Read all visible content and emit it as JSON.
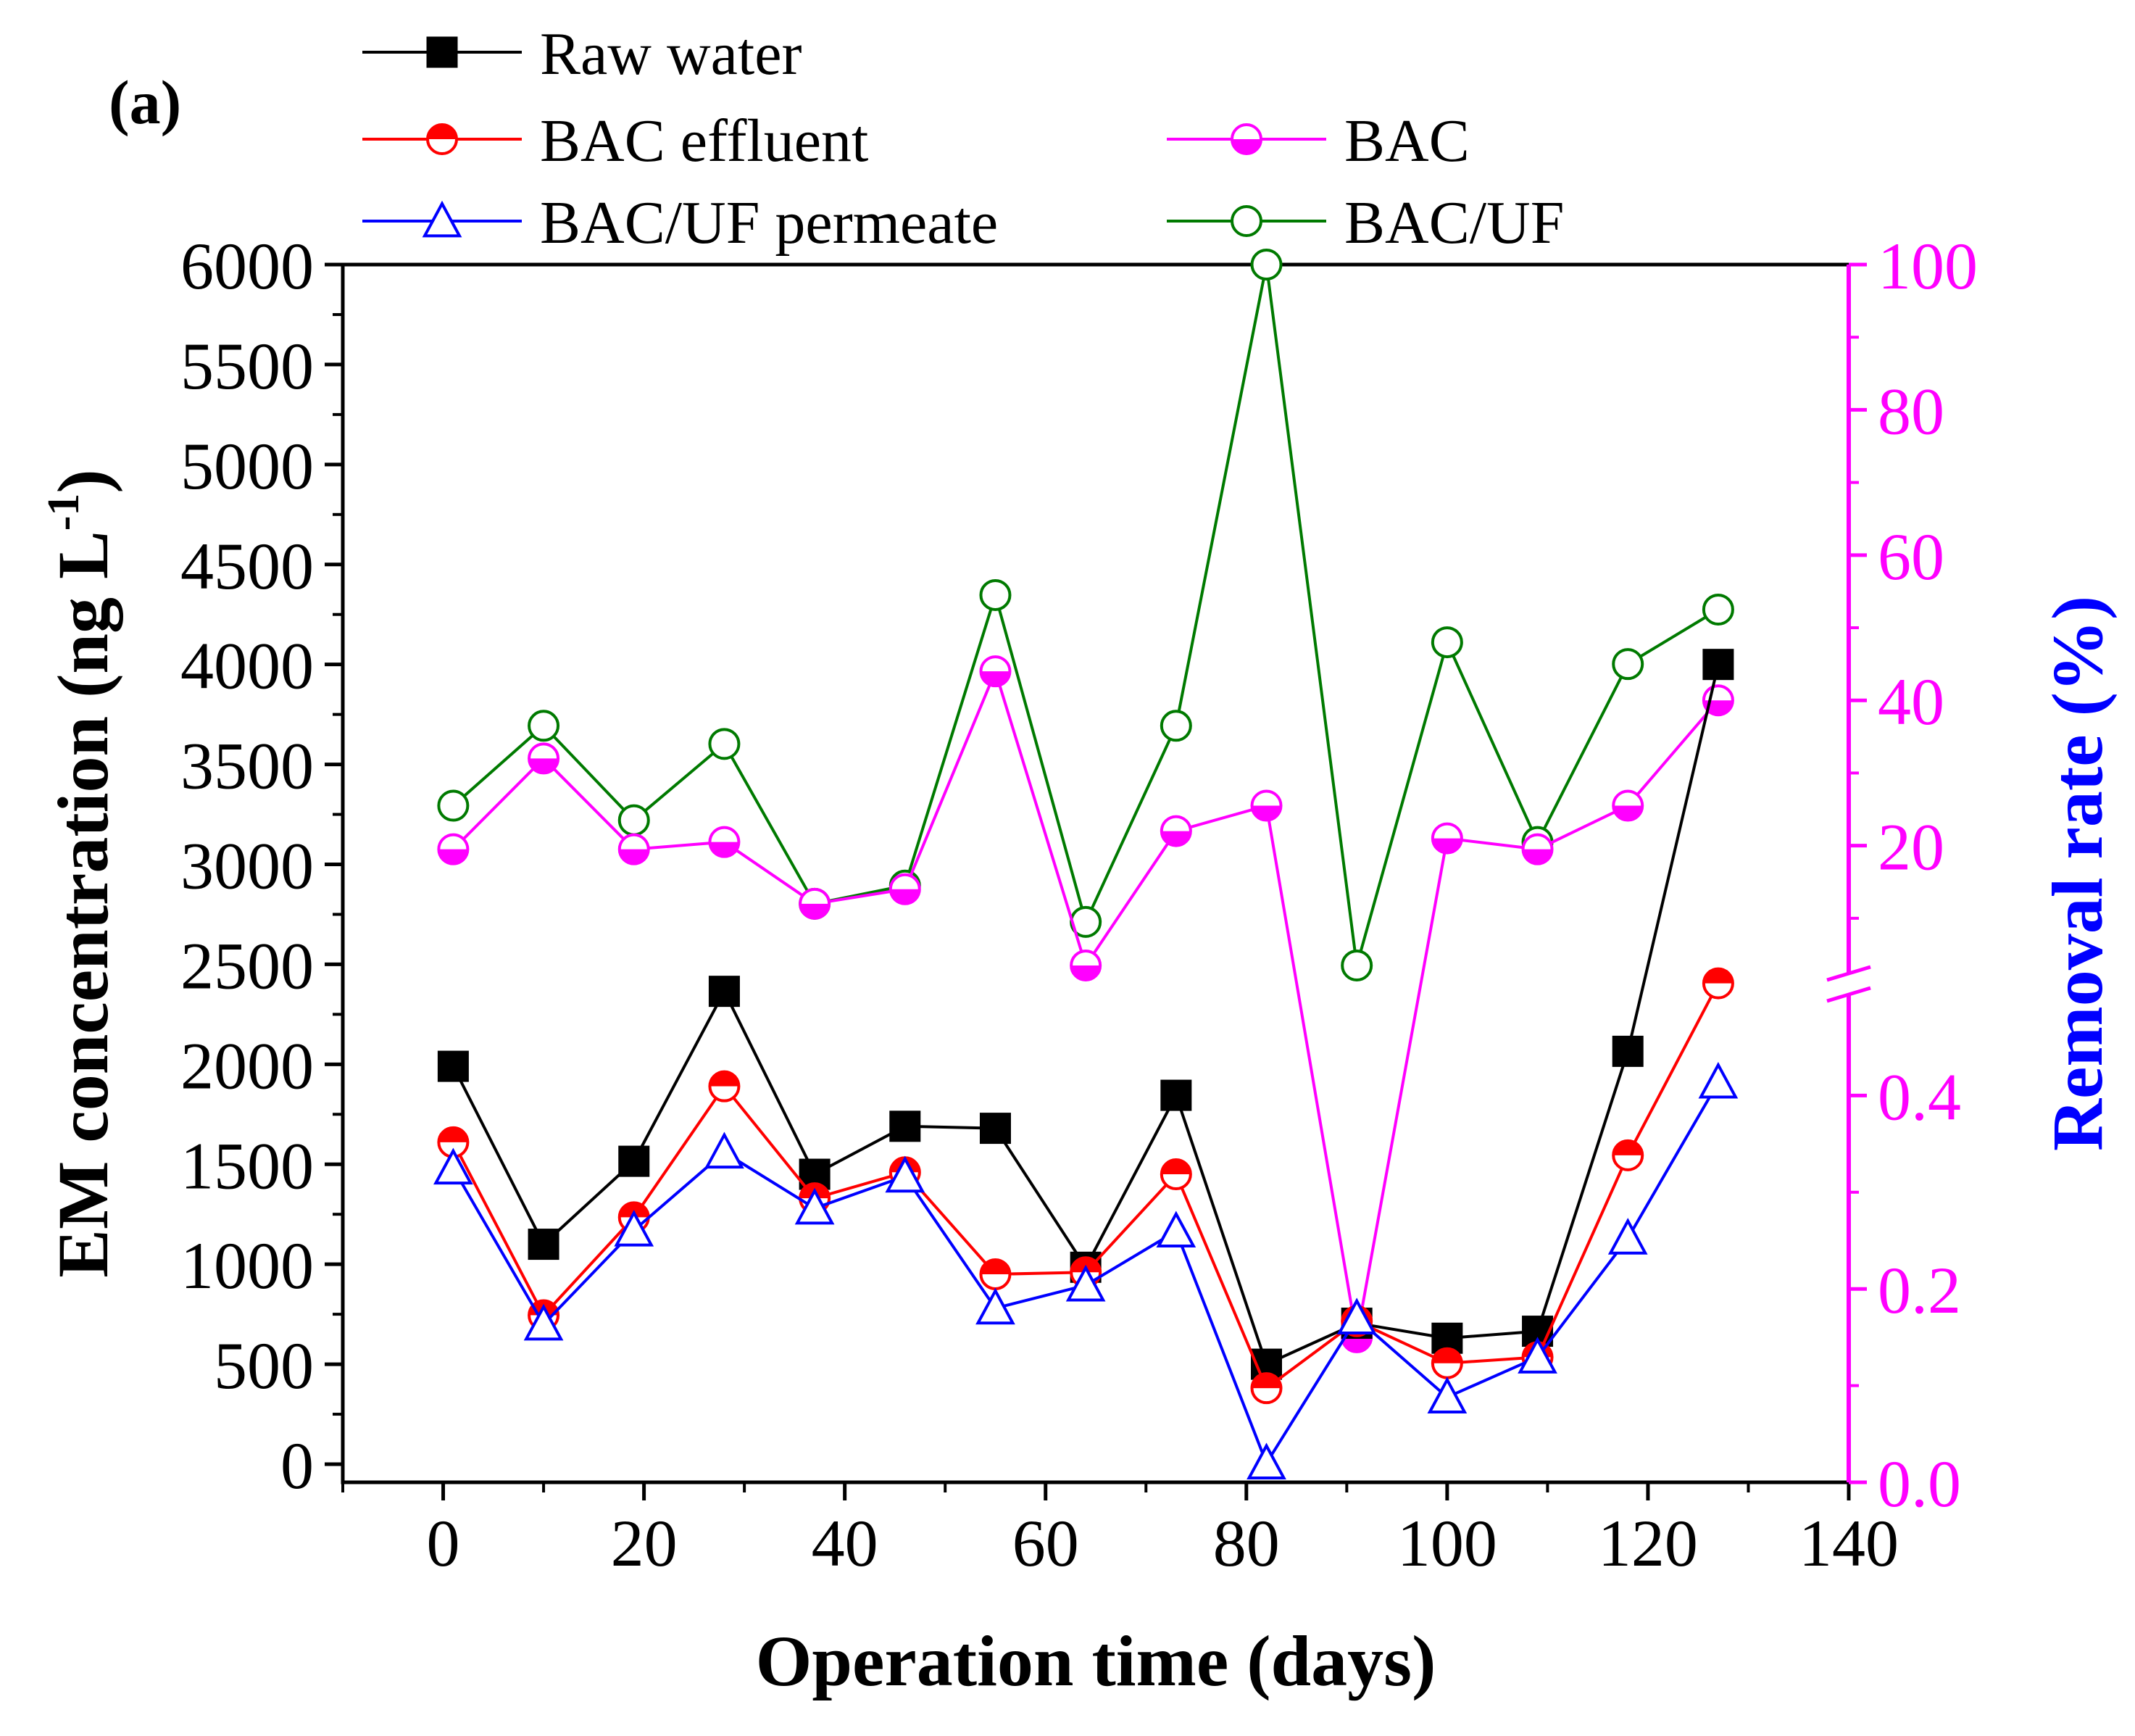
{
  "panel_label": "(a)",
  "colors": {
    "raw": "#000000",
    "bac_eff": "#ff0000",
    "bac": "#ff00ff",
    "bacuf_perm": "#0000ff",
    "bacuf": "#007a00",
    "right_axis": "#ff00ff",
    "right_label": "#0000ff"
  },
  "chart_data": {
    "type": "line",
    "xlabel": "Operation time (days)",
    "ylabel": "EM concentration (ng L",
    "ylabel_sup": "-1",
    "ylabel_close": ")",
    "y2label": "Removal rate (%)",
    "xlim": [
      -10,
      140
    ],
    "ylim": [
      0,
      6000
    ],
    "x_ticks": [
      0,
      20,
      40,
      60,
      80,
      100,
      120,
      140
    ],
    "y_ticks": [
      0,
      500,
      1000,
      1500,
      2000,
      2500,
      3000,
      3500,
      4000,
      4500,
      5000,
      5500,
      6000
    ],
    "y2_axis": {
      "lower_segment": {
        "range": [
          0.0,
          0.5
        ],
        "ticks": [
          "0.0",
          "0.2",
          "0.4"
        ]
      },
      "upper_segment": {
        "range": [
          3.0,
          100
        ],
        "ticks": [
          "20",
          "40",
          "60",
          "80",
          "100"
        ]
      },
      "break_between": true
    },
    "x": [
      1,
      10,
      19,
      28,
      37,
      46,
      55,
      64,
      73,
      82,
      91,
      100,
      109,
      118,
      127
    ],
    "series": [
      {
        "name": "Raw water",
        "axis": "left",
        "marker": "square-filled",
        "values": [
          1990,
          1100,
          1515,
          2365,
          1450,
          1690,
          1680,
          985,
          1845,
          500,
          705,
          630,
          665,
          2065,
          4000
        ]
      },
      {
        "name": "BAC effluent",
        "axis": "left",
        "marker": "circle-half-top",
        "values": [
          1610,
          745,
          1235,
          1890,
          1330,
          1460,
          950,
          960,
          1450,
          380,
          715,
          505,
          535,
          1545,
          2405
        ]
      },
      {
        "name": "BAC/UF permeate",
        "axis": "left",
        "marker": "triangle-open",
        "values": [
          1480,
          700,
          1170,
          1560,
          1280,
          1440,
          780,
          895,
          1165,
          5,
          730,
          335,
          535,
          1130,
          1910
        ]
      },
      {
        "name": "BAC",
        "axis": "right",
        "marker": "circle-half-bottom",
        "values": [
          19.5,
          32,
          19.5,
          20.5,
          12,
          14,
          44,
          3.5,
          22,
          25.5,
          0.15,
          21,
          19.5,
          25.5,
          40
        ]
      },
      {
        "name": "BAC/UF",
        "axis": "right",
        "marker": "circle-open",
        "values": [
          25.5,
          36.5,
          23.5,
          34,
          12,
          14.5,
          54.5,
          9.5,
          36.5,
          100,
          3.5,
          48,
          20.5,
          45,
          52.5
        ]
      }
    ],
    "legend": {
      "placement": "top",
      "entries": [
        "Raw water",
        "BAC effluent",
        "BAC",
        "BAC/UF permeate",
        "BAC/UF"
      ]
    }
  }
}
